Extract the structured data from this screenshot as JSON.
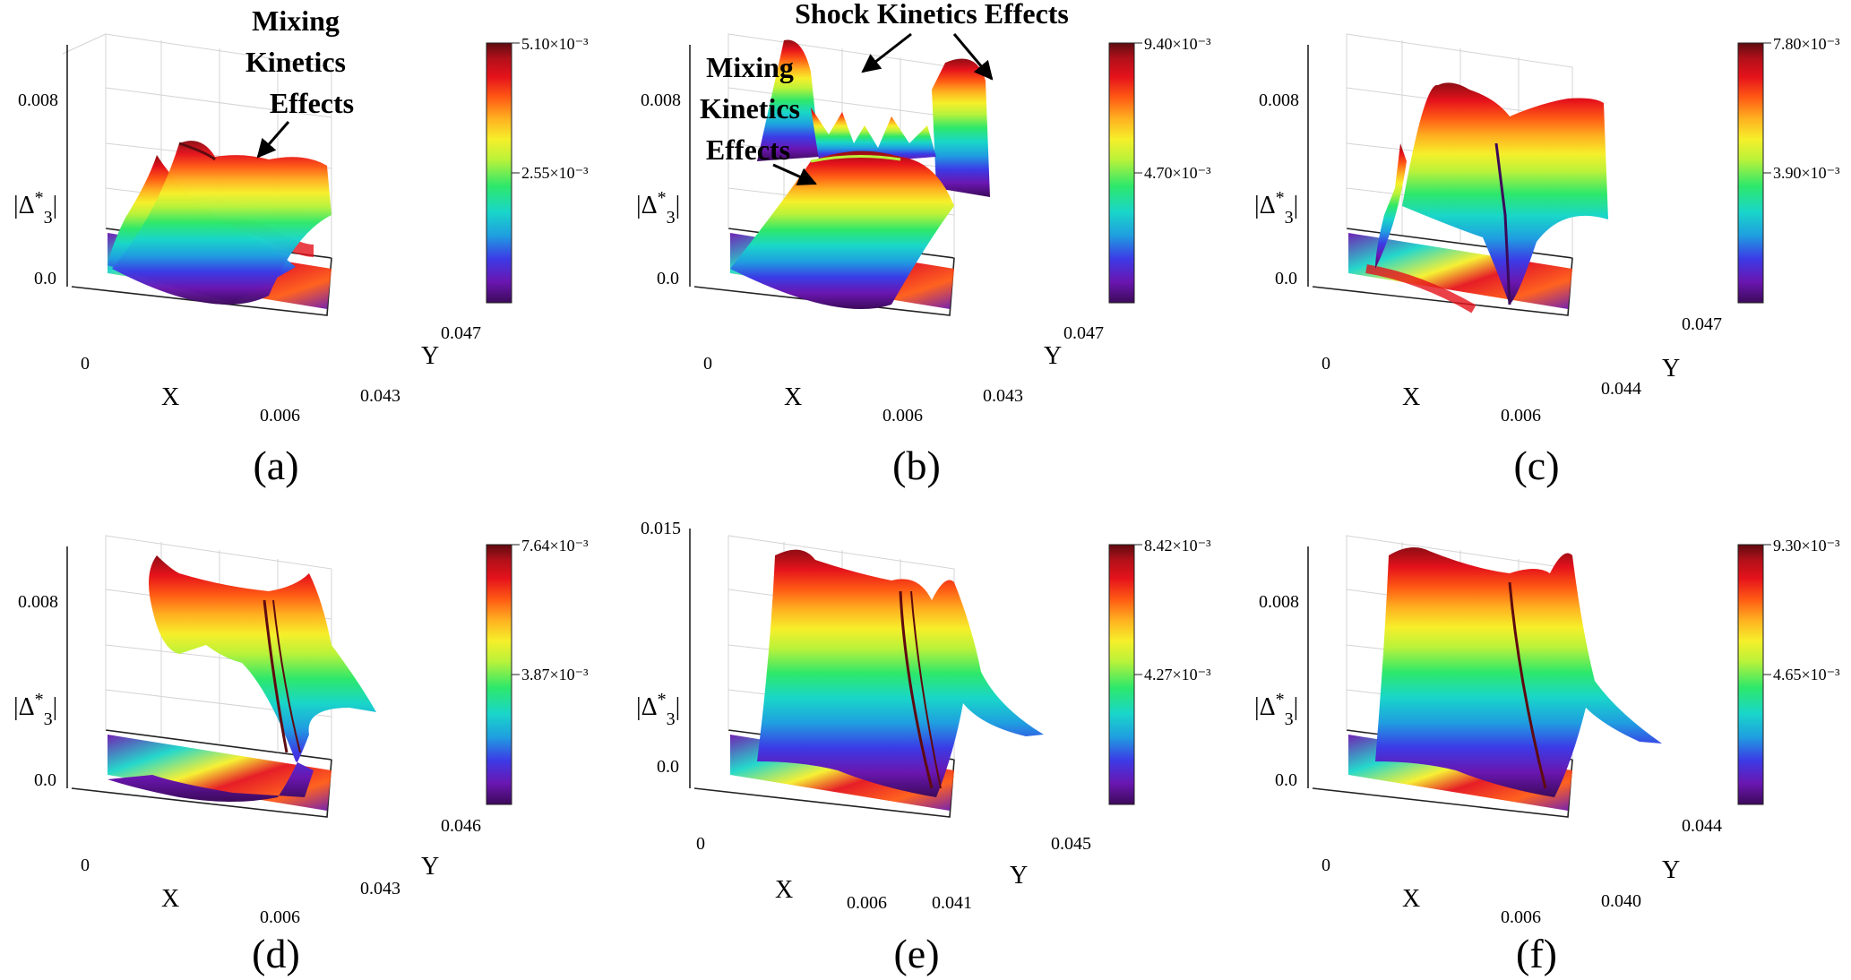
{
  "chart_data": [
    {
      "type": "surface3d",
      "caption": "(a)",
      "zlabel": "|Δ*3|",
      "xlabel": "X",
      "ylabel": "Y",
      "zticks": [
        "0.0",
        "0.008"
      ],
      "xticks": [
        "0",
        "0.006"
      ],
      "yticks": [
        "0.043",
        "0.047"
      ],
      "colorbar": {
        "max": "5.10×10⁻³",
        "mid": "2.55×10⁻³"
      },
      "annotations": [
        {
          "text_lines": [
            "Mixing",
            "Kinetics",
            "Effects"
          ]
        }
      ]
    },
    {
      "type": "surface3d",
      "caption": "(b)",
      "zlabel": "|Δ*3|",
      "xlabel": "X",
      "ylabel": "Y",
      "zticks": [
        "0.0",
        "0.008"
      ],
      "xticks": [
        "0",
        "0.006"
      ],
      "yticks": [
        "0.043",
        "0.047"
      ],
      "colorbar": {
        "max": "9.40×10⁻³",
        "mid": "4.70×10⁻³"
      },
      "annotations": [
        {
          "text_lines": [
            "Shock Kinetics Effects"
          ]
        },
        {
          "text_lines": [
            "Mixing",
            "Kinetics",
            "Effects"
          ]
        }
      ]
    },
    {
      "type": "surface3d",
      "caption": "(c)",
      "zlabel": "|Δ*3|",
      "xlabel": "X",
      "ylabel": "Y",
      "zticks": [
        "0.0",
        "0.008"
      ],
      "xticks": [
        "0",
        "0.006"
      ],
      "yticks": [
        "0.044",
        "0.047"
      ],
      "colorbar": {
        "max": "7.80×10⁻³",
        "mid": "3.90×10⁻³"
      },
      "annotations": []
    },
    {
      "type": "surface3d",
      "caption": "(d)",
      "zlabel": "|Δ*3|",
      "xlabel": "X",
      "ylabel": "Y",
      "zticks": [
        "0.0",
        "0.008"
      ],
      "xticks": [
        "0",
        "0.006"
      ],
      "yticks": [
        "0.043",
        "0.046"
      ],
      "colorbar": {
        "max": "7.64×10⁻³",
        "mid": "3.87×10⁻³"
      },
      "annotations": []
    },
    {
      "type": "surface3d",
      "caption": "(e)",
      "zlabel": "|Δ*3|",
      "xlabel": "X",
      "ylabel": "Y",
      "zticks": [
        "0.0",
        "0.015"
      ],
      "xticks": [
        "0",
        "0.006"
      ],
      "yticks": [
        "0.041",
        "0.045"
      ],
      "colorbar": {
        "max": "8.42×10⁻³",
        "mid": "4.27×10⁻³"
      },
      "annotations": []
    },
    {
      "type": "surface3d",
      "caption": "(f)",
      "zlabel": "|Δ*3|",
      "xlabel": "X",
      "ylabel": "Y",
      "zticks": [
        "0.0",
        "0.008"
      ],
      "xticks": [
        "0",
        "0.006"
      ],
      "yticks": [
        "0.040",
        "0.044"
      ],
      "colorbar": {
        "max": "9.30×10⁻³",
        "mid": "4.65×10⁻³"
      },
      "annotations": []
    }
  ],
  "colors": {
    "rainbow": [
      "#3c0a5a",
      "#6a16b0",
      "#3b3be6",
      "#1f9fe0",
      "#19d6c9",
      "#2ee86a",
      "#b9f23a",
      "#f6ef2a",
      "#ffb020",
      "#ff5a14",
      "#e5121b",
      "#b3101a",
      "#5e0b10"
    ],
    "axis": "#222222",
    "grid": "#d4d4d4"
  }
}
